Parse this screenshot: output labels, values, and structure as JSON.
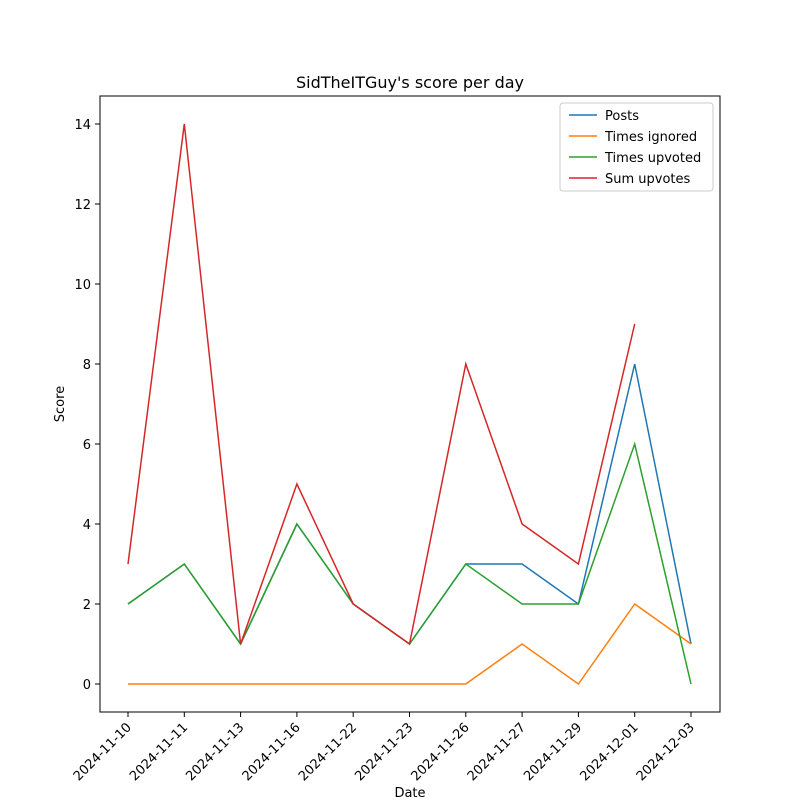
{
  "chart_data": {
    "type": "line",
    "title": "SidTheITGuy's score per day",
    "xlabel": "Date",
    "ylabel": "Score",
    "categories": [
      "2024-11-10",
      "2024-11-11",
      "2024-11-13",
      "2024-11-16",
      "2024-11-22",
      "2024-11-23",
      "2024-11-26",
      "2024-11-27",
      "2024-11-29",
      "2024-12-01",
      "2024-12-03"
    ],
    "series": [
      {
        "name": "Posts",
        "color": "#1f77b4",
        "values": [
          2,
          3,
          1,
          4,
          2,
          1,
          3,
          3,
          2,
          8,
          1
        ]
      },
      {
        "name": "Times ignored",
        "color": "#ff7f0e",
        "values": [
          0,
          0,
          0,
          0,
          0,
          0,
          0,
          1,
          0,
          2,
          1
        ]
      },
      {
        "name": "Times upvoted",
        "color": "#2ca02c",
        "values": [
          2,
          3,
          1,
          4,
          2,
          1,
          3,
          2,
          2,
          6,
          0
        ]
      },
      {
        "name": "Sum upvotes",
        "color": "#d62728",
        "values": [
          3,
          14,
          1,
          5,
          2,
          1,
          8,
          4,
          3,
          9,
          null
        ]
      }
    ],
    "ylim": [
      -0.7,
      14.7
    ],
    "yticks": [
      0,
      2,
      4,
      6,
      8,
      10,
      12,
      14
    ],
    "legend": "upper right",
    "grid": false
  }
}
